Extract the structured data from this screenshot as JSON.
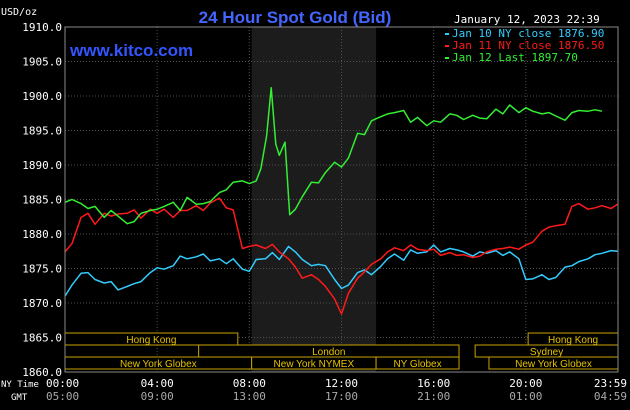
{
  "chart_data": {
    "type": "line",
    "title": "24 Hour Spot Gold (Bid)",
    "site": "www.kitco.com",
    "timestamp": "January 12, 2023 22:39",
    "ylabel": "USD/oz",
    "ylim": [
      1860,
      1910
    ],
    "yticks": [
      "1910.0",
      "1905.0",
      "1900.0",
      "1895.0",
      "1890.0",
      "1885.0",
      "1880.0",
      "1875.0",
      "1870.0",
      "1865.0",
      "1860.0"
    ],
    "x_tick_labels_ny": [
      "00:00",
      "04:00",
      "08:00",
      "12:00",
      "16:00",
      "20:00",
      "23:59"
    ],
    "x_tick_labels_gmt": [
      "05:00",
      "09:00",
      "13:00",
      "17:00",
      "21:00",
      "01:00",
      "04:59"
    ],
    "row_label_ny": "NY Time",
    "row_label_gmt": "GMT",
    "highlight_hours": [
      8.1,
      13.5
    ],
    "grid": true,
    "legend_position": "top-right",
    "series": [
      {
        "name": "Jan 10 NY close 1876.90",
        "color": "#33ccff",
        "x": [
          0,
          0.3,
          0.7,
          1,
          1.3,
          1.7,
          2,
          2.3,
          2.7,
          3,
          3.3,
          3.7,
          4,
          4.3,
          4.7,
          5,
          5.3,
          5.7,
          6,
          6.3,
          6.7,
          7,
          7.3,
          7.7,
          8,
          8.3,
          8.7,
          9,
          9.3,
          9.7,
          10,
          10.3,
          10.7,
          11,
          11.3,
          11.7,
          12,
          12.3,
          12.7,
          13,
          13.3,
          13.7,
          14,
          14.3,
          14.7,
          15,
          15.3,
          15.7,
          16,
          16.3,
          16.7,
          17,
          17.3,
          17.7,
          18,
          18.3,
          18.7,
          19,
          19.3,
          19.7,
          20,
          20.3,
          20.7,
          21,
          21.3,
          21.7,
          22,
          22.3,
          22.7,
          23,
          23.3,
          23.7,
          23.98
        ],
        "values": [
          1871.0,
          1872.6,
          1874.3,
          1874.4,
          1873.4,
          1872.9,
          1873.1,
          1871.9,
          1872.4,
          1872.8,
          1873.1,
          1874.4,
          1875.1,
          1874.9,
          1875.4,
          1876.8,
          1876.4,
          1876.7,
          1877.1,
          1876.1,
          1876.4,
          1875.7,
          1876.4,
          1874.9,
          1874.6,
          1876.3,
          1876.4,
          1877.3,
          1876.3,
          1878.2,
          1877.4,
          1876.3,
          1875.4,
          1875.6,
          1875.4,
          1873.4,
          1872.1,
          1872.6,
          1874.4,
          1874.8,
          1874.1,
          1875.3,
          1876.4,
          1877.1,
          1876.2,
          1877.7,
          1877.2,
          1877.4,
          1878.4,
          1877.4,
          1877.9,
          1877.7,
          1877.4,
          1876.8,
          1877.4,
          1877.2,
          1877.6,
          1876.9,
          1877.4,
          1876.4,
          1873.4,
          1873.5,
          1874.1,
          1873.4,
          1873.7,
          1875.2,
          1875.4,
          1876.0,
          1876.4,
          1877.0,
          1877.2,
          1877.6,
          1877.5
        ]
      },
      {
        "name": "Jan 11 NY close 1876.50",
        "color": "#ff1a1a",
        "x": [
          0,
          0.3,
          0.7,
          1,
          1.3,
          1.7,
          2,
          2.3,
          2.7,
          3,
          3.3,
          3.7,
          4,
          4.3,
          4.7,
          5,
          5.3,
          5.7,
          6,
          6.3,
          6.7,
          7,
          7.3,
          7.7,
          8,
          8.3,
          8.7,
          9,
          9.3,
          9.7,
          10,
          10.3,
          10.7,
          11,
          11.3,
          11.7,
          12,
          12.3,
          12.7,
          13,
          13.3,
          13.7,
          14,
          14.3,
          14.7,
          15,
          15.3,
          15.7,
          16,
          16.3,
          16.7,
          17,
          17.3,
          17.7,
          18,
          18.3,
          18.7,
          19,
          19.3,
          19.7,
          20,
          20.3,
          20.7,
          21,
          21.3,
          21.7,
          22,
          22.3,
          22.7,
          23,
          23.3,
          23.7,
          23.98
        ],
        "values": [
          1877.4,
          1878.6,
          1882.4,
          1883.0,
          1881.4,
          1883.0,
          1882.6,
          1882.9,
          1883.0,
          1883.5,
          1882.3,
          1883.6,
          1883.0,
          1883.6,
          1882.4,
          1883.4,
          1883.4,
          1884.1,
          1883.4,
          1884.5,
          1885.2,
          1883.8,
          1883.5,
          1877.9,
          1878.2,
          1878.4,
          1877.9,
          1878.5,
          1877.4,
          1876.4,
          1875.2,
          1873.6,
          1874.1,
          1873.4,
          1872.4,
          1870.6,
          1868.4,
          1871.4,
          1873.6,
          1874.5,
          1875.6,
          1876.4,
          1877.4,
          1878.0,
          1877.6,
          1878.4,
          1877.8,
          1877.6,
          1877.8,
          1876.9,
          1877.3,
          1876.9,
          1877.0,
          1876.6,
          1876.8,
          1877.4,
          1877.8,
          1877.9,
          1878.1,
          1877.8,
          1878.4,
          1878.8,
          1880.4,
          1881.0,
          1881.2,
          1881.4,
          1884.0,
          1884.4,
          1883.6,
          1883.8,
          1884.1,
          1883.7,
          1884.3
        ]
      },
      {
        "name": "Jan 12 Last 1897.70",
        "color": "#33ee33",
        "x": [
          0,
          0.3,
          0.7,
          1,
          1.3,
          1.7,
          2,
          2.3,
          2.7,
          3,
          3.3,
          3.7,
          4,
          4.3,
          4.7,
          5,
          5.3,
          5.7,
          6,
          6.3,
          6.7,
          7,
          7.3,
          7.7,
          8,
          8.3,
          8.5,
          8.75,
          8.95,
          9.15,
          9.3,
          9.55,
          9.75,
          10,
          10.3,
          10.7,
          11,
          11.3,
          11.7,
          12,
          12.3,
          12.7,
          13,
          13.3,
          13.7,
          14,
          14.3,
          14.7,
          15,
          15.3,
          15.7,
          16,
          16.3,
          16.7,
          17,
          17.3,
          17.7,
          18,
          18.3,
          18.7,
          19,
          19.3,
          19.7,
          20,
          20.3,
          20.7,
          21,
          21.3,
          21.7,
          22,
          22.3,
          22.7,
          23,
          23.3
        ],
        "values": [
          1884.6,
          1885.0,
          1884.4,
          1883.7,
          1884.0,
          1882.4,
          1883.4,
          1882.6,
          1881.5,
          1881.8,
          1883.0,
          1883.4,
          1883.6,
          1884.0,
          1884.6,
          1883.4,
          1885.3,
          1884.3,
          1884.4,
          1884.7,
          1886.0,
          1886.4,
          1887.5,
          1887.7,
          1887.3,
          1887.7,
          1889.5,
          1894.2,
          1901.2,
          1893.0,
          1891.4,
          1893.3,
          1882.8,
          1883.6,
          1885.4,
          1887.5,
          1887.4,
          1888.9,
          1890.4,
          1889.7,
          1891.0,
          1894.6,
          1894.4,
          1896.4,
          1897.0,
          1897.4,
          1897.6,
          1897.9,
          1896.2,
          1896.9,
          1895.7,
          1896.4,
          1896.2,
          1897.4,
          1897.2,
          1896.6,
          1897.2,
          1896.8,
          1896.7,
          1898.1,
          1897.4,
          1898.7,
          1897.6,
          1898.3,
          1897.8,
          1897.4,
          1897.6,
          1897.1,
          1896.5,
          1897.6,
          1897.9,
          1897.8,
          1898.0,
          1897.8
        ]
      }
    ],
    "sessions": [
      {
        "label": "Hong Kong",
        "start": 0,
        "end": 7.5,
        "row": 0
      },
      {
        "label": "Hong Kong",
        "start": 20.1,
        "end": 24,
        "row": 0
      },
      {
        "label": "London",
        "start": 5.8,
        "end": 17.1,
        "row": 1
      },
      {
        "label": "Sydney",
        "start": 17.8,
        "end": 24,
        "row": 1
      },
      {
        "label": "New York Globex",
        "start": 0,
        "end": 8.1,
        "row": 2
      },
      {
        "label": "New York NYMEX",
        "start": 8.1,
        "end": 13.5,
        "row": 2
      },
      {
        "label": "NY Globex",
        "start": 13.5,
        "end": 17.1,
        "row": 2
      },
      {
        "label": "New York Globex",
        "start": 18.4,
        "end": 24,
        "row": 2
      }
    ]
  }
}
